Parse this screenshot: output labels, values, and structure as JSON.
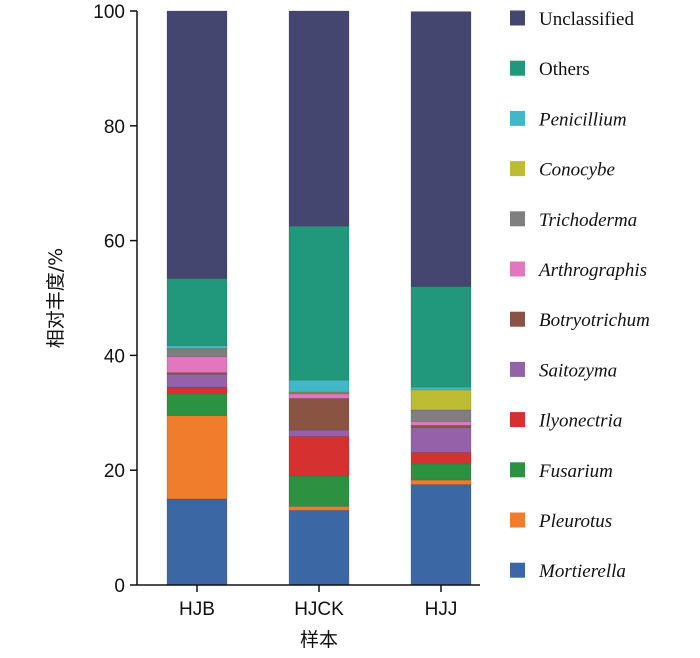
{
  "chart_data": {
    "type": "bar",
    "stacked": true,
    "xlabel": "样本",
    "ylabel": "相对丰度/%",
    "ylim": [
      0,
      100
    ],
    "yticks": [
      0,
      20,
      40,
      60,
      80,
      100
    ],
    "categories": [
      "HJB",
      "HJCK",
      "HJJ"
    ],
    "legend_position": "right",
    "series": [
      {
        "name": "Mortierella",
        "italic": true,
        "color": "#3b68a4",
        "values": [
          15.0,
          13.0,
          17.5
        ]
      },
      {
        "name": "Pleurotus",
        "italic": true,
        "color": "#f07d2c",
        "values": [
          14.5,
          0.7,
          0.8
        ]
      },
      {
        "name": "Fusarium",
        "italic": true,
        "color": "#2d9142",
        "values": [
          3.8,
          5.3,
          2.8
        ]
      },
      {
        "name": "Ilyonectria",
        "italic": true,
        "color": "#d63131",
        "values": [
          1.2,
          6.9,
          2.0
        ]
      },
      {
        "name": "Saitozyma",
        "italic": true,
        "color": "#9462a8",
        "values": [
          2.2,
          1.1,
          4.3
        ]
      },
      {
        "name": "Botryotrichum",
        "italic": true,
        "color": "#8a5445",
        "values": [
          0.3,
          5.5,
          0.4
        ]
      },
      {
        "name": "Arthrographis",
        "italic": true,
        "color": "#e377be",
        "values": [
          2.8,
          0.8,
          0.7
        ]
      },
      {
        "name": "Trichoderma",
        "italic": true,
        "color": "#7f7f7f",
        "values": [
          1.3,
          0.2,
          2.0
        ]
      },
      {
        "name": "Conocybe",
        "italic": true,
        "color": "#bcbd33",
        "values": [
          0.1,
          0.1,
          3.5
        ]
      },
      {
        "name": "Penicillium",
        "italic": true,
        "color": "#40b8c8",
        "values": [
          0.5,
          2.1,
          0.5
        ]
      },
      {
        "name": "Others",
        "italic": false,
        "color": "#21987c",
        "values": [
          11.7,
          26.8,
          17.5
        ]
      },
      {
        "name": "Unclassified",
        "italic": false,
        "color": "#45466f",
        "values": [
          46.6,
          37.5,
          47.9
        ]
      }
    ]
  }
}
